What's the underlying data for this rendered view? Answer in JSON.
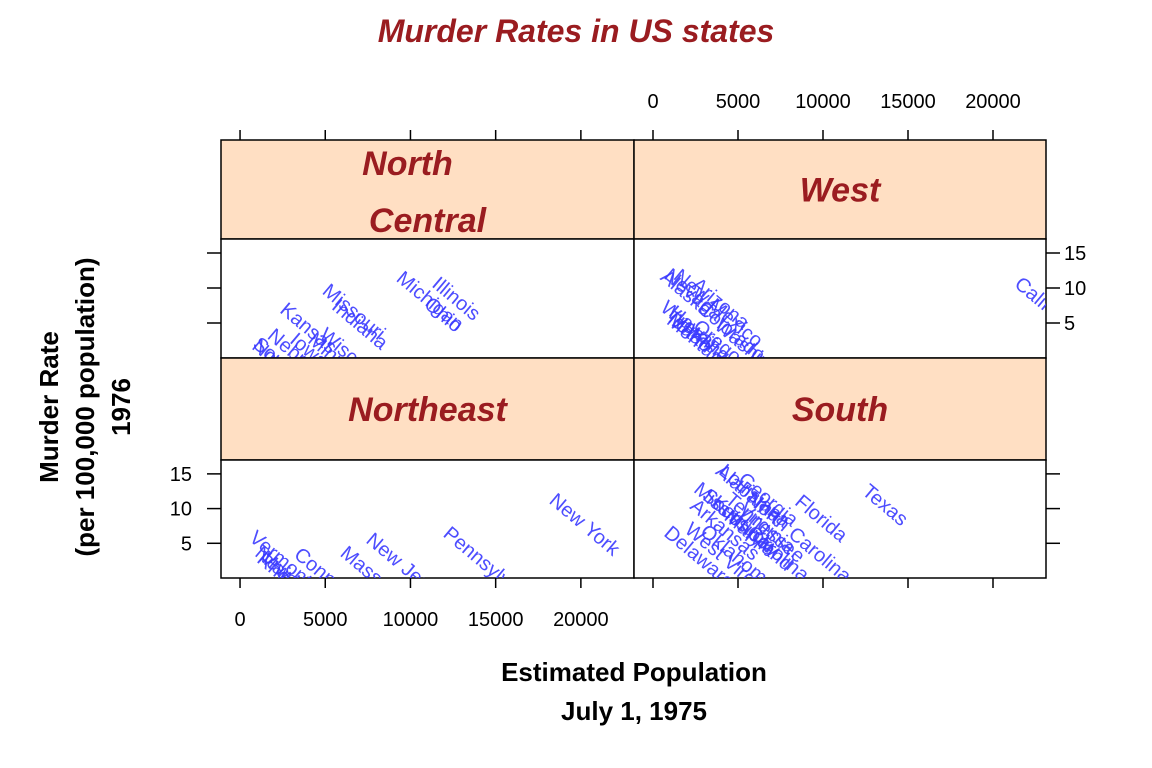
{
  "colors": {
    "title": "#9a1c20",
    "strip_bg": "#ffdfc3",
    "strip_text": "#9a1c20",
    "label": "#3a3aff",
    "axis": "#000000"
  },
  "chart_data": {
    "type": "scatter",
    "title": "Murder Rates in US states",
    "xlabel": [
      "Estimated Population",
      "July 1, 1975"
    ],
    "ylabel": [
      "Murder Rate",
      "(per 100,000 population)",
      "1976"
    ],
    "xlim": [
      -1000,
      23000
    ],
    "ylim": [
      0,
      17
    ],
    "x_ticks": [
      0,
      5000,
      10000,
      15000,
      20000
    ],
    "y_ticks": [
      5,
      10,
      15
    ],
    "label_rotation_deg": 40,
    "panels": [
      {
        "strip": [
          "North",
          "Central"
        ],
        "states": [
          {
            "name": "Illinois",
            "x": 11197,
            "y": 10.3
          },
          {
            "name": "Ohio",
            "x": 10735,
            "y": 7.4
          },
          {
            "name": "Michigan",
            "x": 9111,
            "y": 11.1
          },
          {
            "name": "Indiana",
            "x": 5313,
            "y": 7.1
          },
          {
            "name": "Missouri",
            "x": 4767,
            "y": 9.3
          },
          {
            "name": "Wisconsin",
            "x": 4589,
            "y": 3.0
          },
          {
            "name": "Minnesota",
            "x": 3921,
            "y": 2.3
          },
          {
            "name": "Iowa",
            "x": 2861,
            "y": 2.3
          },
          {
            "name": "Kansas",
            "x": 2280,
            "y": 6.6
          },
          {
            "name": "Nebraska",
            "x": 1544,
            "y": 2.9
          },
          {
            "name": "South Dakota",
            "x": 681,
            "y": 1.7
          },
          {
            "name": "North Dakota",
            "x": 637,
            "y": 1.4
          }
        ]
      },
      {
        "strip": [
          "West"
        ],
        "states": [
          {
            "name": "California",
            "x": 21198,
            "y": 10.3
          },
          {
            "name": "Washington",
            "x": 3559,
            "y": 4.3
          },
          {
            "name": "Colorado",
            "x": 2541,
            "y": 6.8
          },
          {
            "name": "Oregon",
            "x": 2284,
            "y": 4.2
          },
          {
            "name": "Arizona",
            "x": 2212,
            "y": 10.2
          },
          {
            "name": "Utah",
            "x": 1203,
            "y": 4.5
          },
          {
            "name": "New Mexico",
            "x": 1144,
            "y": 11.4
          },
          {
            "name": "Hawaii",
            "x": 868,
            "y": 6.2
          },
          {
            "name": "Idaho",
            "x": 813,
            "y": 5.3
          },
          {
            "name": "Montana",
            "x": 746,
            "y": 5.0
          },
          {
            "name": "Nevada",
            "x": 590,
            "y": 11.5
          },
          {
            "name": "Wyoming",
            "x": 376,
            "y": 6.9
          },
          {
            "name": "Alaska",
            "x": 365,
            "y": 11.3
          }
        ]
      },
      {
        "strip": [
          "Northeast"
        ],
        "states": [
          {
            "name": "New York",
            "x": 18076,
            "y": 10.9
          },
          {
            "name": "Pennsylvania",
            "x": 11860,
            "y": 6.1
          },
          {
            "name": "New Jersey",
            "x": 7333,
            "y": 5.2
          },
          {
            "name": "Massachusetts",
            "x": 5814,
            "y": 3.3
          },
          {
            "name": "Connecticut",
            "x": 3100,
            "y": 3.1
          },
          {
            "name": "Maine",
            "x": 1058,
            "y": 2.7
          },
          {
            "name": "Rhode Island",
            "x": 931,
            "y": 2.4
          },
          {
            "name": "New Hampshire",
            "x": 812,
            "y": 3.3
          },
          {
            "name": "Vermont",
            "x": 472,
            "y": 5.5
          }
        ]
      },
      {
        "strip": [
          "South"
        ],
        "states": [
          {
            "name": "Texas",
            "x": 12237,
            "y": 12.2
          },
          {
            "name": "Florida",
            "x": 8277,
            "y": 10.7
          },
          {
            "name": "North Carolina",
            "x": 5441,
            "y": 11.1
          },
          {
            "name": "Georgia",
            "x": 4931,
            "y": 13.9
          },
          {
            "name": "Virginia",
            "x": 4981,
            "y": 9.5
          },
          {
            "name": "Tennessee",
            "x": 4173,
            "y": 11.0
          },
          {
            "name": "Maryland",
            "x": 4122,
            "y": 8.5
          },
          {
            "name": "Louisiana",
            "x": 3806,
            "y": 15.1
          },
          {
            "name": "Alabama",
            "x": 3615,
            "y": 15.1
          },
          {
            "name": "Kentucky",
            "x": 3387,
            "y": 10.6
          },
          {
            "name": "South Carolina",
            "x": 2816,
            "y": 11.6
          },
          {
            "name": "Oklahoma",
            "x": 2715,
            "y": 6.4
          },
          {
            "name": "Mississippi",
            "x": 2341,
            "y": 12.5
          },
          {
            "name": "Arkansas",
            "x": 2110,
            "y": 10.1
          },
          {
            "name": "West Virginia",
            "x": 1799,
            "y": 6.7
          },
          {
            "name": "Delaware",
            "x": 579,
            "y": 6.2
          }
        ]
      }
    ]
  }
}
